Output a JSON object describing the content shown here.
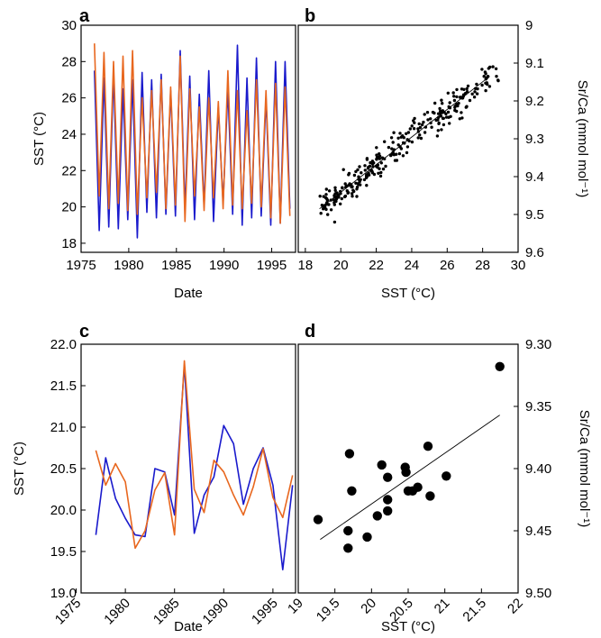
{
  "colors": {
    "instrumental": "#1a1acc",
    "proxy": "#e8671f",
    "points": "#000000"
  },
  "chart_data": [
    {
      "panel": "a",
      "type": "line",
      "xlabel": "Date",
      "ylabel": "SST (°C)",
      "xlim": [
        1975,
        1997.5
      ],
      "ylim": [
        17.5,
        30
      ],
      "xticks": [
        1975,
        1980,
        1985,
        1990,
        1995
      ],
      "yticks": [
        18,
        20,
        22,
        24,
        26,
        28,
        30
      ],
      "series": [
        {
          "color": "instrumental",
          "x": [
            1976.4,
            1976.9,
            1977.4,
            1977.9,
            1978.4,
            1978.9,
            1979.4,
            1979.9,
            1980.4,
            1980.9,
            1981.4,
            1981.9,
            1982.4,
            1982.9,
            1983.4,
            1983.9,
            1984.4,
            1984.9,
            1985.4,
            1985.9,
            1986.4,
            1986.9,
            1987.4,
            1987.9,
            1988.4,
            1988.9,
            1989.4,
            1989.9,
            1990.4,
            1990.9,
            1991.4,
            1991.9,
            1992.4,
            1992.9,
            1993.4,
            1993.9,
            1994.4,
            1994.9,
            1995.4,
            1995.9,
            1996.4,
            1996.9
          ],
          "y": [
            27.5,
            18.7,
            27.1,
            18.9,
            27.3,
            18.8,
            26.5,
            19.3,
            27.0,
            18.3,
            27.4,
            19.7,
            27.0,
            19.4,
            27.3,
            19.6,
            26.4,
            19.5,
            28.6,
            19.8,
            27.2,
            19.3,
            26.2,
            20.0,
            27.5,
            19.2,
            25.5,
            20.2,
            26.5,
            19.6,
            28.9,
            19.0,
            27.1,
            19.4,
            28.2,
            19.5,
            26.0,
            19.0,
            28.0,
            19.1,
            28.0,
            19.9
          ]
        },
        {
          "color": "proxy",
          "x": [
            1976.4,
            1976.9,
            1977.4,
            1977.9,
            1978.4,
            1978.9,
            1979.4,
            1979.9,
            1980.4,
            1980.9,
            1981.4,
            1981.9,
            1982.4,
            1982.9,
            1983.4,
            1983.9,
            1984.4,
            1984.9,
            1985.4,
            1985.9,
            1986.4,
            1986.9,
            1987.4,
            1987.9,
            1988.4,
            1988.9,
            1989.4,
            1989.9,
            1990.4,
            1990.9,
            1991.4,
            1991.9,
            1992.4,
            1992.9,
            1993.4,
            1993.9,
            1994.4,
            1994.9,
            1995.4,
            1995.9,
            1996.4,
            1996.9
          ],
          "y": [
            29.0,
            20.6,
            28.5,
            19.9,
            28.0,
            20.2,
            28.3,
            19.8,
            28.6,
            19.6,
            26.0,
            20.5,
            26.4,
            20.8,
            27.0,
            19.9,
            26.6,
            20.1,
            28.3,
            19.2,
            26.5,
            20.6,
            25.5,
            19.8,
            26.0,
            20.5,
            25.8,
            19.9,
            27.5,
            20.1,
            26.4,
            19.9,
            25.3,
            20.2,
            27.0,
            20.0,
            26.4,
            19.4,
            26.8,
            19.1,
            26.6,
            19.5
          ]
        }
      ]
    },
    {
      "panel": "b",
      "type": "scatter",
      "xlabel": "SST (°C)",
      "ylabel": "Sr/Ca (mmol mol⁻¹)",
      "xlim": [
        17.6,
        30
      ],
      "ylim": [
        9.6,
        9.0
      ],
      "xticks": [
        18,
        20,
        22,
        24,
        26,
        28,
        30
      ],
      "yticks": [
        9,
        9.1,
        9.2,
        9.3,
        9.4,
        9.5,
        9.6
      ],
      "n_points": 280,
      "fit_line": {
        "x": [
          18.8,
          28.4
        ],
        "y": [
          9.485,
          9.135
        ]
      }
    },
    {
      "panel": "c",
      "type": "line",
      "xlabel": "Date",
      "ylabel": "SST (°C)",
      "xlim": [
        1975.5,
        1997.3
      ],
      "ylim": [
        19.0,
        22.0
      ],
      "xticks": [
        1975,
        1980,
        1985,
        1990,
        1995
      ],
      "yticks": [
        "19.0",
        "19.5",
        "20.0",
        "20.5",
        "21.0",
        "21.5",
        "22.0"
      ],
      "series": [
        {
          "color": "instrumental",
          "x": [
            1977,
            1978,
            1979,
            1980,
            1981,
            1982,
            1983,
            1984,
            1985,
            1986,
            1987,
            1988,
            1989,
            1990,
            1991,
            1992,
            1993,
            1994,
            1995,
            1996,
            1997
          ],
          "y": [
            19.7,
            20.63,
            20.14,
            19.9,
            19.7,
            19.68,
            20.5,
            20.46,
            19.94,
            21.75,
            19.72,
            20.18,
            20.4,
            21.02,
            20.8,
            20.07,
            20.5,
            20.75,
            20.3,
            19.28,
            20.3
          ]
        },
        {
          "color": "proxy",
          "x": [
            1977,
            1978,
            1979,
            1980,
            1981,
            1982,
            1983,
            1984,
            1985,
            1986,
            1987,
            1988,
            1989,
            1990,
            1991,
            1992,
            1993,
            1994,
            1995,
            1996,
            1997
          ],
          "y": [
            20.72,
            20.3,
            20.56,
            20.34,
            19.54,
            19.75,
            20.24,
            20.45,
            19.7,
            21.8,
            20.25,
            19.97,
            20.6,
            20.46,
            20.18,
            19.94,
            20.28,
            20.74,
            20.15,
            19.91,
            20.42
          ]
        }
      ]
    },
    {
      "panel": "d",
      "type": "scatter",
      "xlabel": "SST (°C)",
      "ylabel": "Sr/Ca (mmol mol⁻¹)",
      "xlim": [
        19.0,
        22.0
      ],
      "ylim": [
        9.5,
        9.3
      ],
      "xticks": [
        "19",
        "19.5",
        "20",
        "20.5",
        "21",
        "21.5",
        "22"
      ],
      "yticks": [
        "9.30",
        "9.35",
        "9.40",
        "9.45",
        "9.50"
      ],
      "points": [
        [
          19.27,
          9.441
        ],
        [
          19.68,
          9.464
        ],
        [
          19.68,
          9.45
        ],
        [
          19.7,
          9.388
        ],
        [
          19.73,
          9.418
        ],
        [
          19.94,
          9.455
        ],
        [
          20.08,
          9.438
        ],
        [
          20.14,
          9.397
        ],
        [
          20.22,
          9.407
        ],
        [
          20.22,
          9.425
        ],
        [
          20.22,
          9.434
        ],
        [
          20.46,
          9.399
        ],
        [
          20.47,
          9.403
        ],
        [
          20.5,
          9.418
        ],
        [
          20.56,
          9.418
        ],
        [
          20.63,
          9.415
        ],
        [
          20.77,
          9.382
        ],
        [
          20.8,
          9.422
        ],
        [
          21.02,
          9.406
        ],
        [
          21.75,
          9.318
        ]
      ],
      "fit_line": {
        "x": [
          19.3,
          21.75
        ],
        "y": [
          9.457,
          9.357
        ]
      }
    }
  ]
}
